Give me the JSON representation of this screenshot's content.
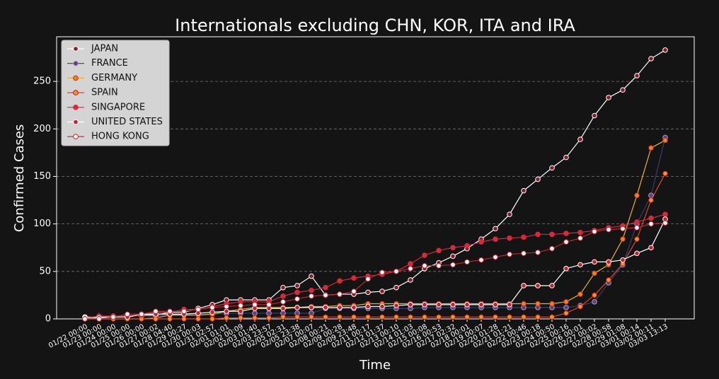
{
  "chart_data": {
    "type": "line",
    "title": "Internationals excluding CHN, KOR, ITA and IRA",
    "x_label": "Time",
    "y_label": "Confirmed Cases",
    "categories": [
      "01/22 00:00",
      "01/23 00:00",
      "01/24 00:00",
      "01/25 00:00",
      "01/26 00:00",
      "01/27 00:02",
      "01/28 04:40",
      "01/29 00:27",
      "01/30 00:03",
      "01/31 02:57",
      "02/01 01:01",
      "02/02 00:09",
      "02/03 01:40",
      "02/03 23:57",
      "02/05 02:31",
      "02/05 23:38",
      "02/07 00:07",
      "02/08 00:21",
      "02/09 00:28",
      "02/09 23:48",
      "02/11 00:17",
      "02/12 01:37",
      "02/13 00:10",
      "02/14 01:03",
      "02/15 00:08",
      "02/16 00:53",
      "02/17 02:32",
      "02/18 00:01",
      "02/19 00:07",
      "02/20 01:28",
      "02/21 01:21",
      "02/22 00:46",
      "02/23 00:18",
      "02/24 00:50",
      "02/25 00:16",
      "02/26 00:01",
      "02/27 00:02",
      "02/28 00:58",
      "02/29 01:08",
      "03/01 00:14",
      "03/02 00:11",
      "03/03 13:13"
    ],
    "series": [
      {
        "name": "JAPAN",
        "color": "#ffffff",
        "marker": "#8b1a2b",
        "edge": "#ffffff",
        "values": [
          2,
          2,
          2,
          2,
          4,
          4,
          7,
          7,
          11,
          15,
          20,
          20,
          20,
          20,
          33,
          35,
          45,
          25,
          26,
          26,
          28,
          29,
          33,
          41,
          53,
          59,
          66,
          74,
          84,
          95,
          110,
          135,
          147,
          159,
          170,
          189,
          214,
          233,
          241,
          256,
          274,
          283
        ]
      },
      {
        "name": "FRANCE",
        "color": "#3b3b6e",
        "marker": "#6a3a7a",
        "edge": "#9aa0c8",
        "values": [
          0,
          0,
          2,
          3,
          3,
          3,
          4,
          5,
          5,
          5,
          6,
          6,
          6,
          6,
          6,
          6,
          6,
          11,
          11,
          11,
          11,
          11,
          11,
          11,
          12,
          12,
          12,
          12,
          12,
          12,
          12,
          12,
          12,
          12,
          12,
          14,
          18,
          38,
          57,
          100,
          130,
          191
        ]
      },
      {
        "name": "GERMANY",
        "color": "#e8b030",
        "marker": "#f08020",
        "edge": "#c03020",
        "values": [
          0,
          0,
          0,
          0,
          0,
          1,
          4,
          4,
          4,
          5,
          8,
          10,
          12,
          12,
          12,
          12,
          13,
          13,
          14,
          14,
          16,
          16,
          16,
          16,
          16,
          16,
          16,
          16,
          16,
          16,
          16,
          16,
          16,
          16,
          18,
          26,
          48,
          57,
          84,
          130,
          180,
          188
        ]
      },
      {
        "name": "SPAIN",
        "color": "#e0452a",
        "marker": "#f59030",
        "edge": "#b02010",
        "values": [
          0,
          0,
          0,
          0,
          0,
          0,
          0,
          0,
          0,
          0,
          1,
          1,
          1,
          1,
          2,
          2,
          2,
          2,
          2,
          2,
          2,
          2,
          2,
          2,
          2,
          2,
          2,
          2,
          2,
          2,
          2,
          2,
          2,
          2,
          6,
          13,
          25,
          41,
          58,
          84,
          125,
          153
        ]
      },
      {
        "name": "SINGAPORE",
        "color": "#d62a3a",
        "marker": "#d62a3a",
        "edge": "#d62a3a",
        "values": [
          1,
          3,
          3,
          3,
          4,
          7,
          7,
          10,
          10,
          13,
          16,
          18,
          18,
          18,
          24,
          28,
          30,
          33,
          40,
          43,
          45,
          47,
          50,
          58,
          67,
          72,
          75,
          77,
          81,
          84,
          85,
          86,
          89,
          89,
          90,
          91,
          93,
          96,
          98,
          102,
          106,
          110
        ]
      },
      {
        "name": "UNITED STATES",
        "color": "#ffffff",
        "marker": "#c81e2e",
        "edge": "#ffffff",
        "values": [
          1,
          1,
          2,
          2,
          5,
          5,
          5,
          5,
          6,
          7,
          8,
          8,
          11,
          11,
          11,
          12,
          12,
          12,
          12,
          12,
          13,
          13,
          14,
          15,
          15,
          15,
          15,
          15,
          15,
          15,
          15,
          35,
          35,
          35,
          53,
          57,
          60,
          60,
          62,
          69,
          75,
          105
        ]
      },
      {
        "name": "HONG KONG",
        "color": "#c8202e",
        "marker": "#ffffff",
        "edge": "#c8202e",
        "values": [
          0,
          0,
          2,
          5,
          5,
          8,
          8,
          8,
          10,
          12,
          13,
          14,
          15,
          15,
          18,
          21,
          24,
          25,
          26,
          29,
          42,
          49,
          50,
          53,
          56,
          56,
          57,
          60,
          62,
          65,
          68,
          69,
          70,
          74,
          81,
          85,
          92,
          94,
          95,
          96,
          100,
          101
        ]
      }
    ],
    "ylim": [
      0,
      297
    ],
    "yticks": [
      0,
      50,
      100,
      150,
      200,
      250
    ],
    "grid": true,
    "legend": "upper left"
  }
}
